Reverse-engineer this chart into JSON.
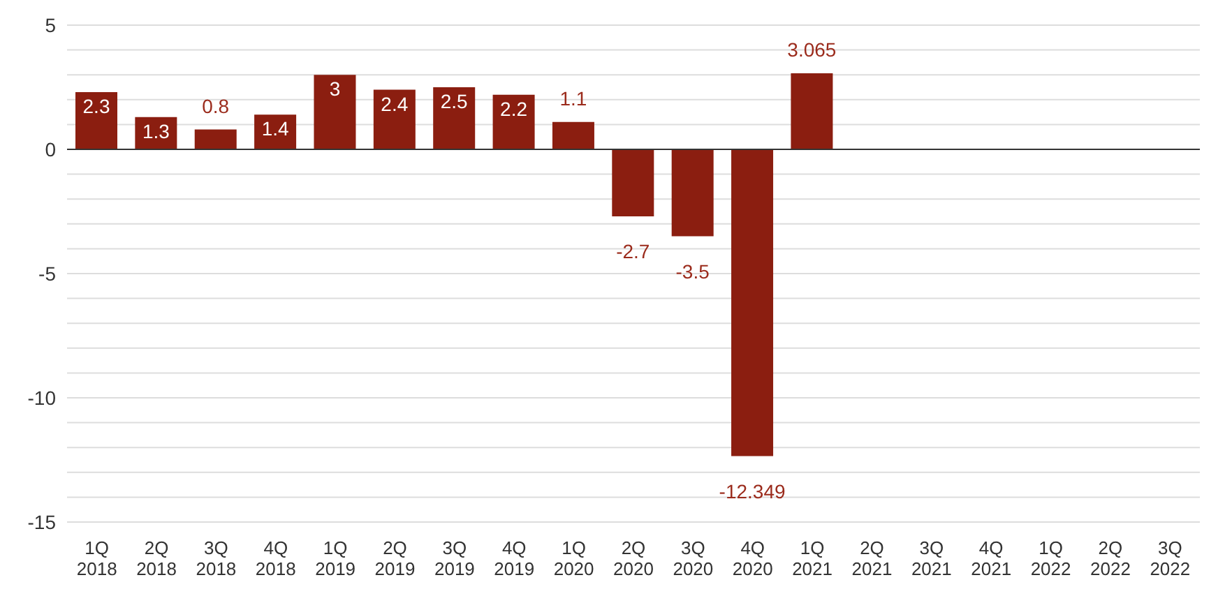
{
  "chart_data": {
    "type": "bar",
    "categories": [
      "1Q 2018",
      "2Q 2018",
      "3Q 2018",
      "4Q 2018",
      "1Q 2019",
      "2Q 2019",
      "3Q 2019",
      "4Q 2019",
      "1Q 2020",
      "2Q 2020",
      "3Q 2020",
      "4Q 2020",
      "1Q 2021",
      "2Q 2021",
      "3Q 2021",
      "4Q 2021",
      "1Q 2022",
      "2Q 2022",
      "3Q 2022"
    ],
    "values": [
      2.3,
      1.3,
      0.8,
      1.4,
      3,
      2.4,
      2.5,
      2.2,
      1.1,
      -2.7,
      -3.5,
      -12.349,
      3.065,
      null,
      null,
      null,
      null,
      null,
      null
    ],
    "color": "#8b1e10",
    "data_labels": true,
    "ylim": [
      -15,
      5
    ],
    "yticks": [
      -15,
      {
        "value": -14,
        "label": null
      },
      {
        "value": -13,
        "label": null
      },
      {
        "value": -12,
        "label": null
      },
      {
        "value": -11,
        "label": null
      },
      -10,
      {
        "value": -9,
        "label": null
      },
      {
        "value": -8,
        "label": null
      },
      {
        "value": -7,
        "label": null
      },
      {
        "value": -6,
        "label": null
      },
      -5,
      {
        "value": -4,
        "label": null
      },
      {
        "value": -3,
        "label": null
      },
      {
        "value": -2,
        "label": null
      },
      {
        "value": -1,
        "label": null
      },
      0,
      {
        "value": 1,
        "label": null
      },
      {
        "value": 2,
        "label": null
      },
      {
        "value": 3,
        "label": null
      },
      {
        "value": 4,
        "label": null
      },
      5
    ],
    "grid": "y"
  }
}
